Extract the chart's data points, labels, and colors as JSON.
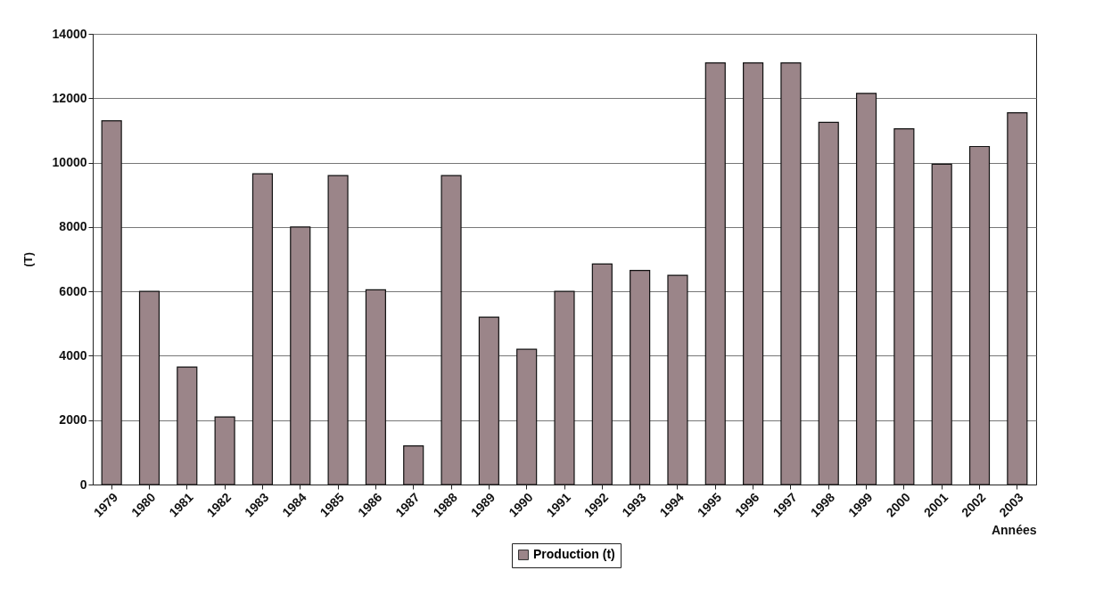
{
  "chart_data": {
    "type": "bar",
    "xlabel": "Années",
    "ylabel": "(T)",
    "categories": [
      "1979",
      "1980",
      "1981",
      "1982",
      "1983",
      "1984",
      "1985",
      "1986",
      "1987",
      "1988",
      "1989",
      "1990",
      "1991",
      "1992",
      "1993",
      "1994",
      "1995",
      "1996",
      "1997",
      "1998",
      "1999",
      "2000",
      "2001",
      "2002",
      "2003"
    ],
    "series": [
      {
        "name": "Production (t)",
        "color": "#9b8589",
        "values": [
          11300,
          6000,
          3650,
          2100,
          9650,
          8000,
          9600,
          6050,
          1200,
          9600,
          5200,
          4200,
          6000,
          6850,
          6650,
          6500,
          13100,
          13100,
          13100,
          11250,
          12150,
          11050,
          9950,
          10500,
          11550
        ]
      }
    ],
    "ylim": [
      0,
      14000
    ],
    "yticks": [
      0,
      2000,
      4000,
      6000,
      8000,
      10000,
      12000,
      14000
    ],
    "grid": "y",
    "legend": "bottom"
  }
}
